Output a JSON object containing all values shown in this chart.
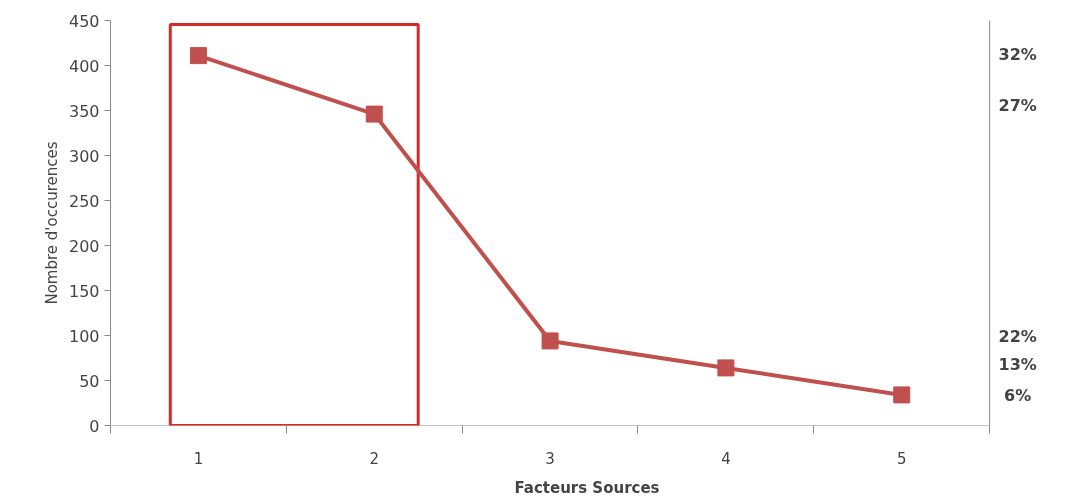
{
  "chart_data": {
    "type": "line",
    "xlabel": "Facteurs Sources",
    "ylabel": "Nombre d'occurences",
    "categories": [
      "1",
      "2",
      "3",
      "4",
      "5"
    ],
    "series": [
      {
        "color": "#c0504d",
        "values": [
          411,
          346,
          94,
          64,
          34
        ]
      }
    ],
    "marker": "square",
    "line_style": "solid",
    "ylim": [
      0,
      450
    ],
    "yticks": [
      0,
      50,
      100,
      150,
      200,
      250,
      300,
      350,
      400,
      450
    ],
    "annotations": [
      "32%",
      "27%",
      "22%",
      "13%",
      "6%"
    ],
    "grid": false
  }
}
